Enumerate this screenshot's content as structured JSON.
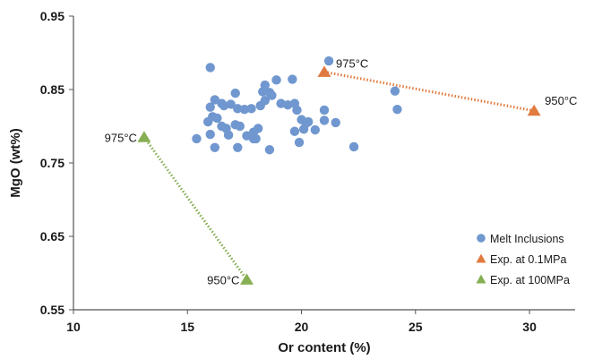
{
  "chart_data": {
    "type": "scatter",
    "xlabel": "Or content (%)",
    "ylabel": "MgO (wt%)",
    "xlim": [
      10,
      32
    ],
    "ylim": [
      0.55,
      0.95
    ],
    "xticks": [
      10,
      15,
      20,
      25,
      30
    ],
    "yticks": [
      0.55,
      0.65,
      0.75,
      0.85,
      0.95
    ],
    "xtick_labels": [
      "10",
      "15",
      "20",
      "25",
      "30"
    ],
    "ytick_labels": [
      "0.55",
      "0.65",
      "0.75",
      "0.85",
      "0.95"
    ],
    "grid": false,
    "legend_position": "bottom-right",
    "series": [
      {
        "name": "Melt Inclusions",
        "marker": "circle",
        "color": "#7097CF",
        "points": [
          [
            16.0,
            0.88
          ],
          [
            18.9,
            0.863
          ],
          [
            19.6,
            0.864
          ],
          [
            21.2,
            0.889
          ],
          [
            16.2,
            0.836
          ],
          [
            18.3,
            0.847
          ],
          [
            18.4,
            0.856
          ],
          [
            18.6,
            0.846
          ],
          [
            18.7,
            0.842
          ],
          [
            17.1,
            0.845
          ],
          [
            16.0,
            0.826
          ],
          [
            16.5,
            0.831
          ],
          [
            16.6,
            0.828
          ],
          [
            16.9,
            0.83
          ],
          [
            17.2,
            0.824
          ],
          [
            17.5,
            0.823
          ],
          [
            17.8,
            0.824
          ],
          [
            18.2,
            0.828
          ],
          [
            18.4,
            0.835
          ],
          [
            19.1,
            0.831
          ],
          [
            19.4,
            0.829
          ],
          [
            19.7,
            0.831
          ],
          [
            19.8,
            0.822
          ],
          [
            21.0,
            0.822
          ],
          [
            15.9,
            0.806
          ],
          [
            16.1,
            0.813
          ],
          [
            16.3,
            0.811
          ],
          [
            16.5,
            0.8
          ],
          [
            16.7,
            0.797
          ],
          [
            17.1,
            0.802
          ],
          [
            17.3,
            0.8
          ],
          [
            17.9,
            0.792
          ],
          [
            18.1,
            0.797
          ],
          [
            20.0,
            0.809
          ],
          [
            20.2,
            0.804
          ],
          [
            20.3,
            0.806
          ],
          [
            21.0,
            0.808
          ],
          [
            21.5,
            0.805
          ],
          [
            20.1,
            0.796
          ],
          [
            20.6,
            0.795
          ],
          [
            19.7,
            0.793
          ],
          [
            16.0,
            0.789
          ],
          [
            16.8,
            0.788
          ],
          [
            17.6,
            0.787
          ],
          [
            17.9,
            0.783
          ],
          [
            18.0,
            0.783
          ],
          [
            15.4,
            0.783
          ],
          [
            16.2,
            0.771
          ],
          [
            17.2,
            0.771
          ],
          [
            18.6,
            0.768
          ],
          [
            19.9,
            0.778
          ],
          [
            22.3,
            0.772
          ],
          [
            24.1,
            0.848
          ],
          [
            24.2,
            0.823
          ]
        ]
      },
      {
        "name": "Exp. at 0.1MPa",
        "marker": "triangle",
        "color": "#E07A3E",
        "line_style": "dotted",
        "points": [
          [
            21.0,
            0.874
          ],
          [
            30.2,
            0.821
          ]
        ]
      },
      {
        "name": "Exp. at 100MPa",
        "marker": "triangle",
        "color": "#86AF53",
        "line_style": "dotted",
        "points": [
          [
            13.1,
            0.785
          ],
          [
            17.6,
            0.591
          ]
        ]
      }
    ],
    "annotations": [
      {
        "text": "975°C",
        "x": 21.0,
        "y": 0.874
      },
      {
        "text": "950°C",
        "x": 30.2,
        "y": 0.821
      },
      {
        "text": "975°C",
        "x": 13.1,
        "y": 0.785
      },
      {
        "text": "950°C",
        "x": 17.6,
        "y": 0.591
      }
    ]
  }
}
